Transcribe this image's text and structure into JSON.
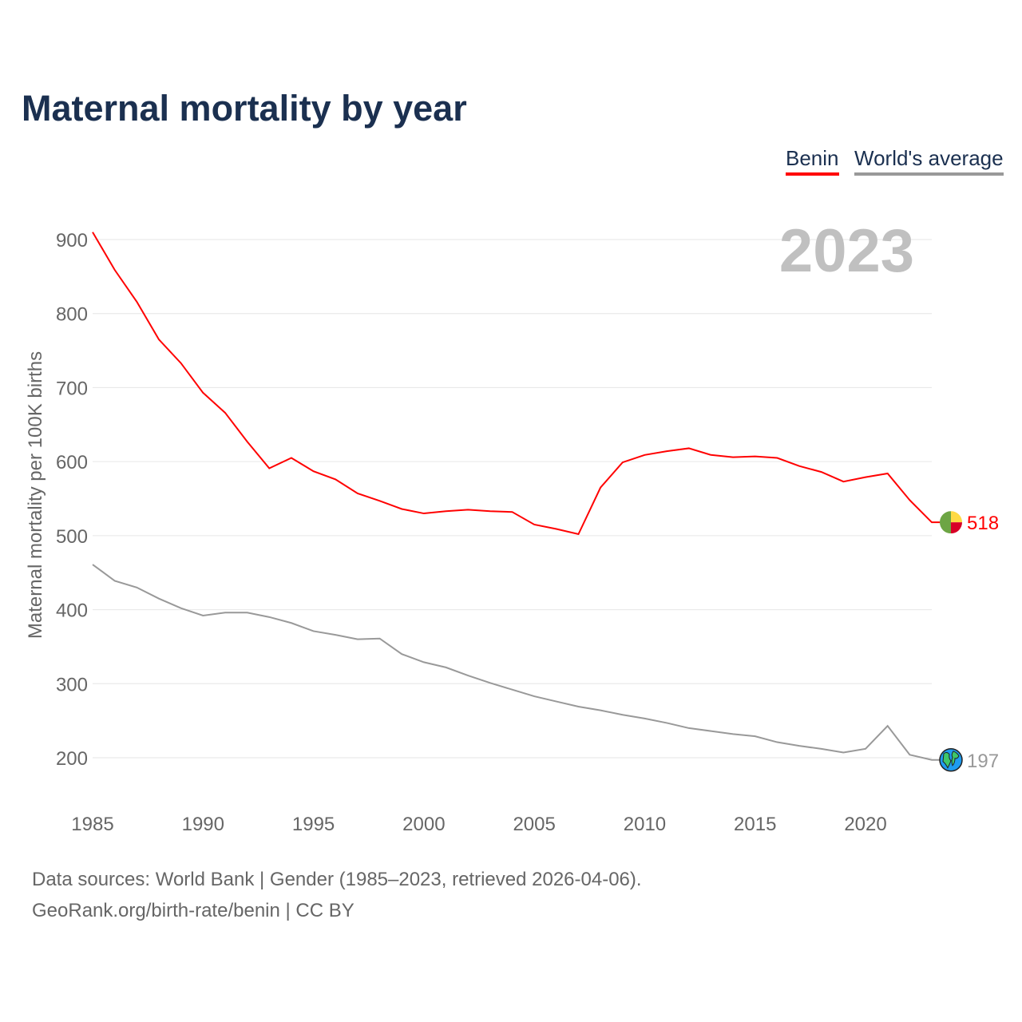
{
  "title": "Maternal mortality by year",
  "legend": {
    "benin": "Benin",
    "world": "World's average"
  },
  "footer": {
    "line1": "Data sources: World Bank | Gender (1985–2023, retrieved 2026-04-06).",
    "line2": "GeoRank.org/birth-rate/benin | CC BY"
  },
  "chart_data": {
    "type": "line",
    "title": "Maternal mortality by year",
    "ylabel": "Maternal mortality per 100K births",
    "xlabel": "",
    "year_label": "2023",
    "ylim": [
      200,
      900
    ],
    "xlim": [
      1985,
      2023
    ],
    "yticks": [
      200,
      300,
      400,
      500,
      600,
      700,
      800,
      900
    ],
    "xticks": [
      1985,
      1990,
      1995,
      2000,
      2005,
      2010,
      2015,
      2020
    ],
    "grid": true,
    "legend_position": "top-right",
    "x": [
      1985,
      1986,
      1987,
      1988,
      1989,
      1990,
      1991,
      1992,
      1993,
      1994,
      1995,
      1996,
      1997,
      1998,
      1999,
      2000,
      2001,
      2002,
      2003,
      2004,
      2005,
      2006,
      2007,
      2008,
      2009,
      2010,
      2011,
      2012,
      2013,
      2014,
      2015,
      2016,
      2017,
      2018,
      2019,
      2020,
      2021,
      2022,
      2023
    ],
    "series": [
      {
        "name": "Benin",
        "color": "#ff0000",
        "end_label": "518",
        "values": [
          910,
          859,
          816,
          765,
          733,
          693,
          666,
          627,
          591,
          605,
          587,
          576,
          557,
          547,
          536,
          530,
          533,
          535,
          533,
          532,
          515,
          509,
          502,
          565,
          599,
          609,
          614,
          618,
          609,
          606,
          607,
          605,
          594,
          586,
          573,
          579,
          584,
          548,
          518
        ]
      },
      {
        "name": "World's average",
        "color": "#999999",
        "end_label": "197",
        "values": [
          461,
          439,
          430,
          415,
          402,
          392,
          396,
          396,
          390,
          382,
          371,
          366,
          360,
          361,
          340,
          329,
          322,
          311,
          301,
          292,
          283,
          276,
          269,
          264,
          258,
          253,
          247,
          240,
          236,
          232,
          229,
          221,
          216,
          212,
          207,
          212,
          243,
          204,
          197
        ]
      }
    ]
  }
}
